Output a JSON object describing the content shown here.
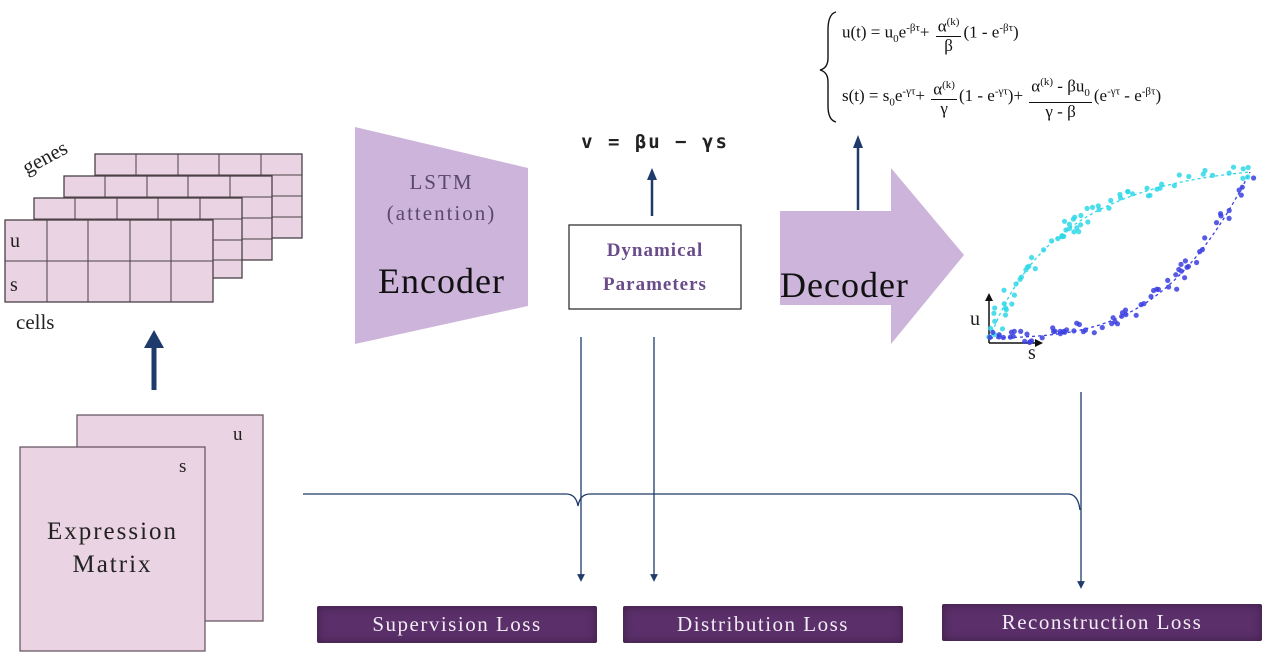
{
  "grid": {
    "genes_label": "genes",
    "cells_label": "cells",
    "u_label": "u",
    "s_label": "s"
  },
  "expression": {
    "u_label": "u",
    "s_label": "s",
    "line1": "Expression",
    "line2": "Matrix"
  },
  "encoder": {
    "line1": "LSTM",
    "line2": "(attention)",
    "title": "Encoder"
  },
  "velocity_equation": "v = βu − γs",
  "dynamical": {
    "line1": "Dynamical",
    "line2": "Parameters"
  },
  "decoder": {
    "title": "Decoder"
  },
  "formula": {
    "u_lhs": "u(t) = u",
    "s_lhs": "s(t) = s"
  },
  "phase_plot": {
    "u_axis": "u",
    "s_axis": "s"
  },
  "losses": {
    "supervision": "Supervision Loss",
    "distribution": "Distribution Loss",
    "reconstruction": "Reconstruction Loss"
  },
  "colors": {
    "matrix_fill": "#ead3e2",
    "matrix_border": "#4a4046",
    "shape_fill": "#cdb4db",
    "arrow": "#1f3b6b",
    "cyan": "#2fd8e8",
    "blue": "#3b3fe0",
    "loss_bg": "#5b2f6a",
    "text_purple": "#6a4c8a"
  }
}
